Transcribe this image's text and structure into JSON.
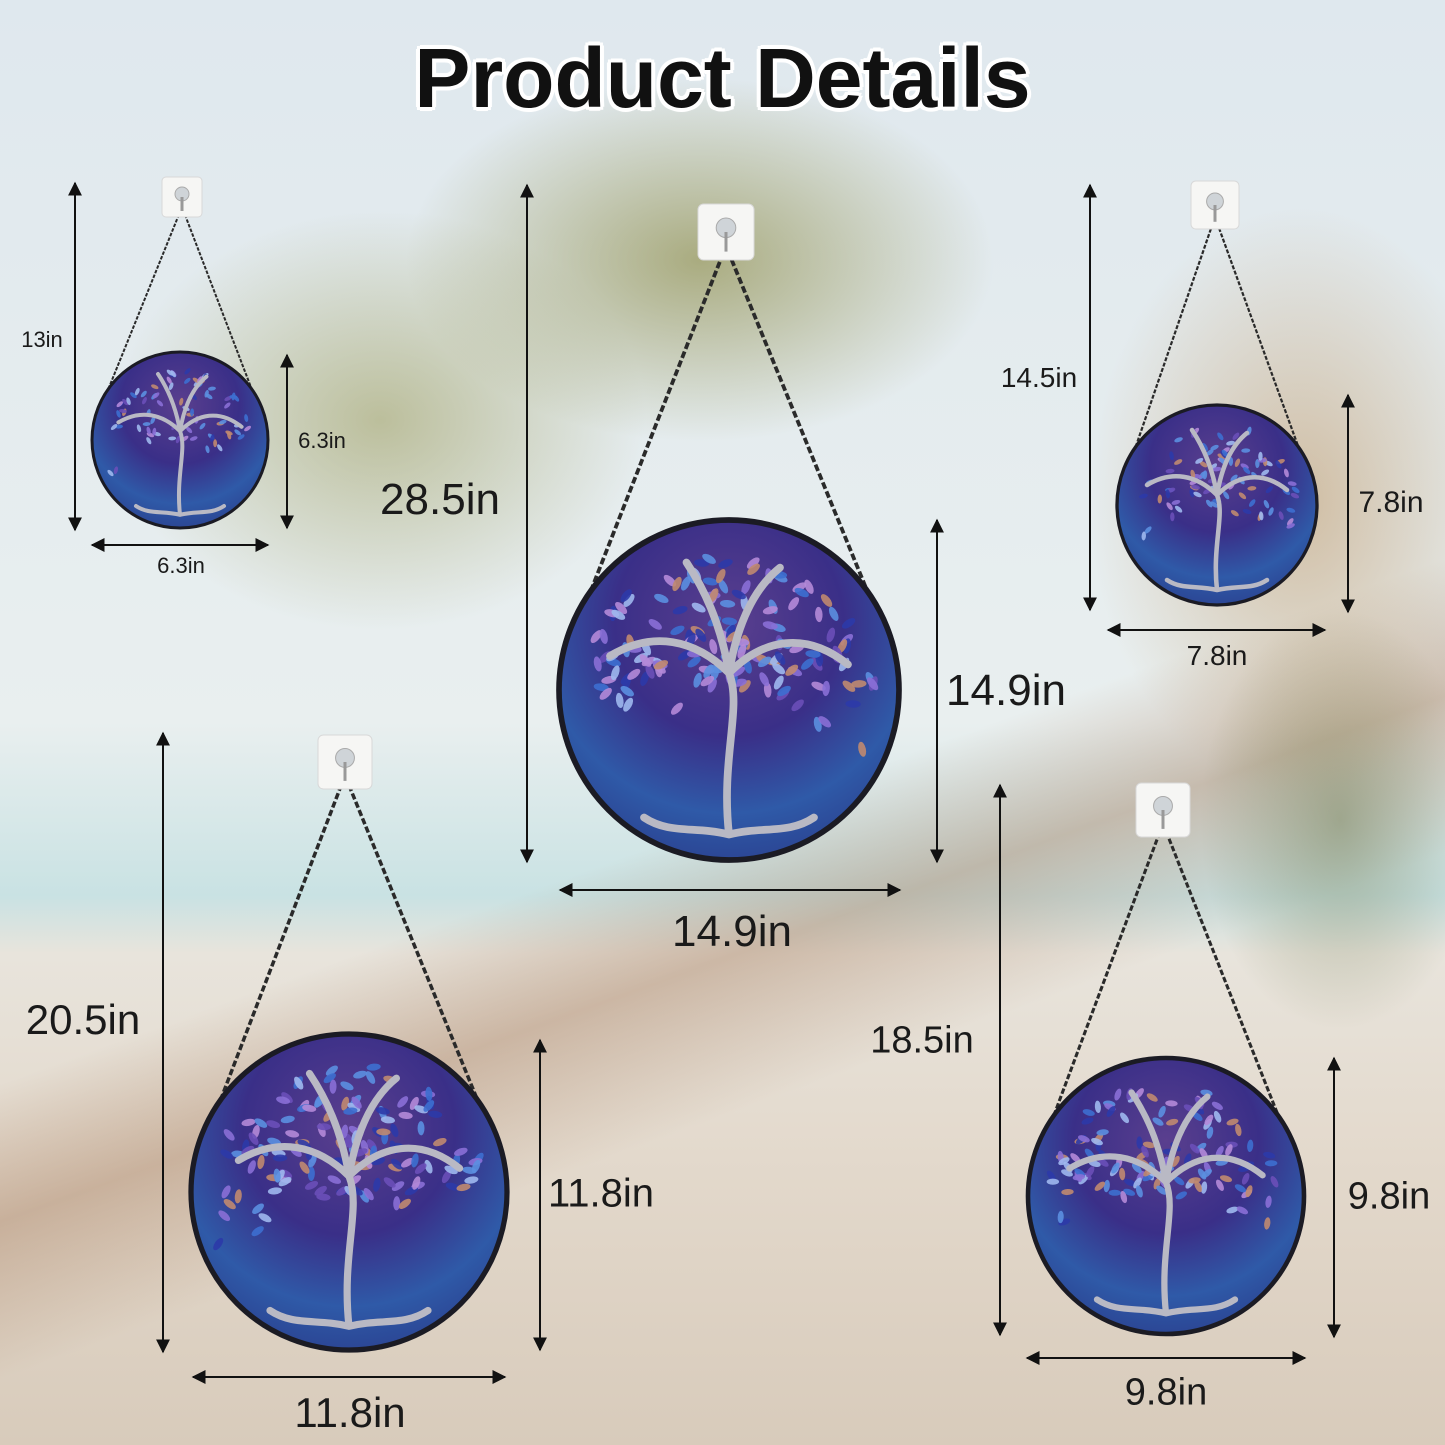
{
  "title": "Product Details",
  "colors": {
    "leaf_purple": "#6a4fb8",
    "leaf_blue": "#3d6fd0",
    "glass_dark": "#1e2a6e",
    "glass_light": "#4f8ed6",
    "frame": "#1b1b24"
  },
  "ornaments": [
    {
      "size": "small",
      "total_height": "13in",
      "diameter_height": "6.3in",
      "diameter_width": "6.3in"
    },
    {
      "size": "extra-large",
      "total_height": "28.5in",
      "diameter_height": "14.9in",
      "diameter_width": "14.9in"
    },
    {
      "size": "medium-small",
      "total_height": "14.5in",
      "diameter_height": "7.8in",
      "diameter_width": "7.8in"
    },
    {
      "size": "large",
      "total_height": "20.5in",
      "diameter_height": "11.8in",
      "diameter_width": "11.8in"
    },
    {
      "size": "medium",
      "total_height": "18.5in",
      "diameter_height": "9.8in",
      "diameter_width": "9.8in"
    }
  ]
}
